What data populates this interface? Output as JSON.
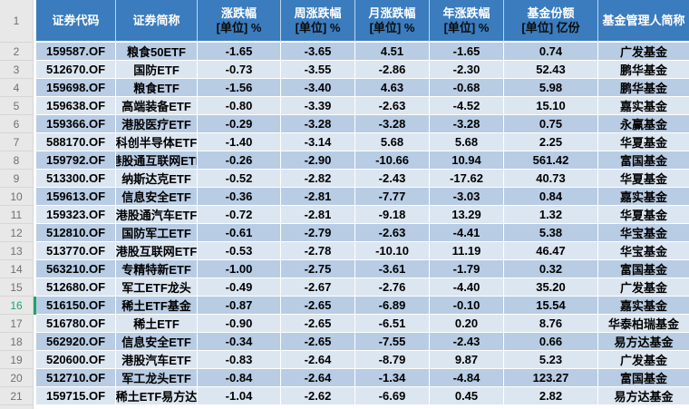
{
  "colors": {
    "header_bg": "#3A7CBE",
    "header_line": "#BFD4EA",
    "row_dark": "#B8CCE4",
    "row_light": "#DCE6F1",
    "gutter_bg": "#E8E8E8",
    "gutter_line": "#D6D6D6",
    "gutter_text": "#6F6F6F",
    "selected_green": "#21A366"
  },
  "gutter": {
    "header_row_number": "1"
  },
  "table": {
    "selected_row_num": "16",
    "columns": [
      {
        "title": "证券代码",
        "unit": ""
      },
      {
        "title": "证券简称",
        "unit": ""
      },
      {
        "title": "涨跌幅",
        "unit": "[单位] %"
      },
      {
        "title": "周涨跌幅",
        "unit": "[单位] %"
      },
      {
        "title": "月涨跌幅",
        "unit": "[单位] %"
      },
      {
        "title": "年涨跌幅",
        "unit": "[单位] %"
      },
      {
        "title": "基金份额",
        "unit": "[单位] 亿份"
      },
      {
        "title": "基金管理人简称",
        "unit": ""
      }
    ],
    "rows": [
      {
        "num": "2",
        "cells": [
          "159587.OF",
          "粮食50ETF",
          "-1.65",
          "-3.65",
          "4.51",
          "-1.65",
          "0.74",
          "广发基金"
        ]
      },
      {
        "num": "3",
        "cells": [
          "512670.OF",
          "国防ETF",
          "-0.73",
          "-3.55",
          "-2.86",
          "-2.30",
          "52.43",
          "鹏华基金"
        ]
      },
      {
        "num": "4",
        "cells": [
          "159698.OF",
          "粮食ETF",
          "-1.56",
          "-3.40",
          "4.63",
          "-0.68",
          "5.98",
          "鹏华基金"
        ]
      },
      {
        "num": "5",
        "cells": [
          "159638.OF",
          "高端装备ETF",
          "-0.80",
          "-3.39",
          "-2.63",
          "-4.52",
          "15.10",
          "嘉实基金"
        ]
      },
      {
        "num": "6",
        "cells": [
          "159366.OF",
          "港股医疗ETF",
          "-0.29",
          "-3.28",
          "-3.28",
          "-3.28",
          "0.75",
          "永赢基金"
        ]
      },
      {
        "num": "7",
        "cells": [
          "588170.OF",
          "科创半导体ETF",
          "-1.40",
          "-3.14",
          "5.68",
          "5.68",
          "2.25",
          "华夏基金"
        ]
      },
      {
        "num": "8",
        "cells": [
          "159792.OF",
          "港股通互联网ETF",
          "-0.26",
          "-2.90",
          "-10.66",
          "10.94",
          "561.42",
          "富国基金"
        ]
      },
      {
        "num": "9",
        "cells": [
          "513300.OF",
          "纳斯达克ETF",
          "-0.52",
          "-2.82",
          "-2.43",
          "-17.62",
          "40.73",
          "华夏基金"
        ]
      },
      {
        "num": "10",
        "cells": [
          "159613.OF",
          "信息安全ETF",
          "-0.36",
          "-2.81",
          "-7.77",
          "-3.03",
          "0.84",
          "嘉实基金"
        ]
      },
      {
        "num": "11",
        "cells": [
          "159323.OF",
          "港股通汽车ETF",
          "-0.72",
          "-2.81",
          "-9.18",
          "13.29",
          "1.32",
          "华夏基金"
        ]
      },
      {
        "num": "12",
        "cells": [
          "512810.OF",
          "国防军工ETF",
          "-0.61",
          "-2.79",
          "-2.63",
          "-4.41",
          "5.38",
          "华宝基金"
        ]
      },
      {
        "num": "13",
        "cells": [
          "513770.OF",
          "港股互联网ETF",
          "-0.53",
          "-2.78",
          "-10.10",
          "11.19",
          "46.47",
          "华宝基金"
        ]
      },
      {
        "num": "14",
        "cells": [
          "563210.OF",
          "专精特新ETF",
          "-1.00",
          "-2.75",
          "-3.61",
          "-1.79",
          "0.32",
          "富国基金"
        ]
      },
      {
        "num": "15",
        "cells": [
          "512680.OF",
          "军工ETF龙头",
          "-0.49",
          "-2.67",
          "-2.76",
          "-4.40",
          "35.20",
          "广发基金"
        ]
      },
      {
        "num": "16",
        "cells": [
          "516150.OF",
          "稀土ETF基金",
          "-0.87",
          "-2.65",
          "-6.89",
          "-0.10",
          "15.54",
          "嘉实基金"
        ]
      },
      {
        "num": "17",
        "cells": [
          "516780.OF",
          "稀土ETF",
          "-0.90",
          "-2.65",
          "-6.51",
          "0.20",
          "8.76",
          "华泰柏瑞基金"
        ]
      },
      {
        "num": "18",
        "cells": [
          "562920.OF",
          "信息安全ETF",
          "-0.34",
          "-2.65",
          "-7.55",
          "-2.43",
          "0.66",
          "易方达基金"
        ]
      },
      {
        "num": "19",
        "cells": [
          "520600.OF",
          "港股汽车ETF",
          "-0.83",
          "-2.64",
          "-8.79",
          "9.87",
          "5.23",
          "广发基金"
        ]
      },
      {
        "num": "20",
        "cells": [
          "512710.OF",
          "军工龙头ETF",
          "-0.84",
          "-2.64",
          "-1.34",
          "-4.84",
          "123.27",
          "富国基金"
        ]
      },
      {
        "num": "21",
        "cells": [
          "159715.OF",
          "稀土ETF易方达",
          "-1.04",
          "-2.62",
          "-6.69",
          "0.45",
          "2.82",
          "易方达基金"
        ]
      }
    ]
  }
}
